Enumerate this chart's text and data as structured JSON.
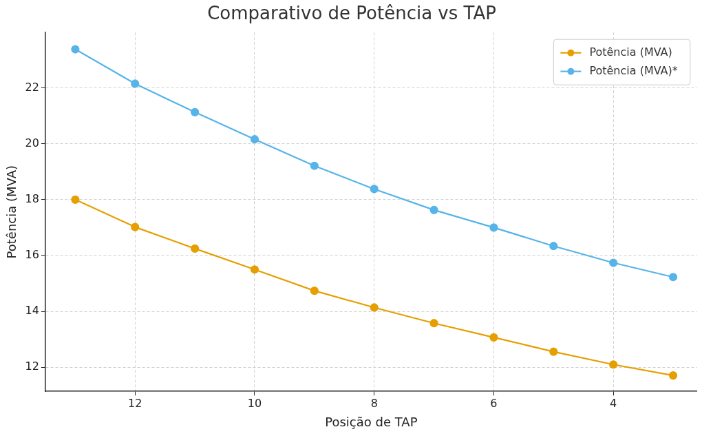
{
  "chart_data": {
    "type": "line",
    "title": "Comparativo de Potência vs TAP",
    "xlabel": "Posição de TAP",
    "ylabel": "Potência (MVA)",
    "x": [
      13,
      12,
      11,
      10,
      9,
      8,
      7,
      6,
      5,
      4,
      3
    ],
    "series": [
      {
        "name": "Potência (MVA)",
        "color": "#e69f00",
        "values": [
          18.0,
          17.02,
          16.25,
          15.5,
          14.74,
          14.14,
          13.58,
          13.07,
          12.56,
          12.1,
          11.71
        ]
      },
      {
        "name": "Potência (MVA)*",
        "color": "#56b4e9",
        "values": [
          23.38,
          22.15,
          21.13,
          20.16,
          19.21,
          18.38,
          17.63,
          17.0,
          16.34,
          15.74,
          15.23
        ]
      }
    ],
    "xlim": [
      13.5,
      2.6
    ],
    "xticks": [
      12,
      10,
      8,
      6,
      4
    ],
    "ylim": [
      11.14,
      23.98
    ],
    "yticks": [
      12,
      14,
      16,
      18,
      20,
      22
    ],
    "grid": true,
    "legend": "top right",
    "marker": "circle",
    "line_style": "solid"
  }
}
